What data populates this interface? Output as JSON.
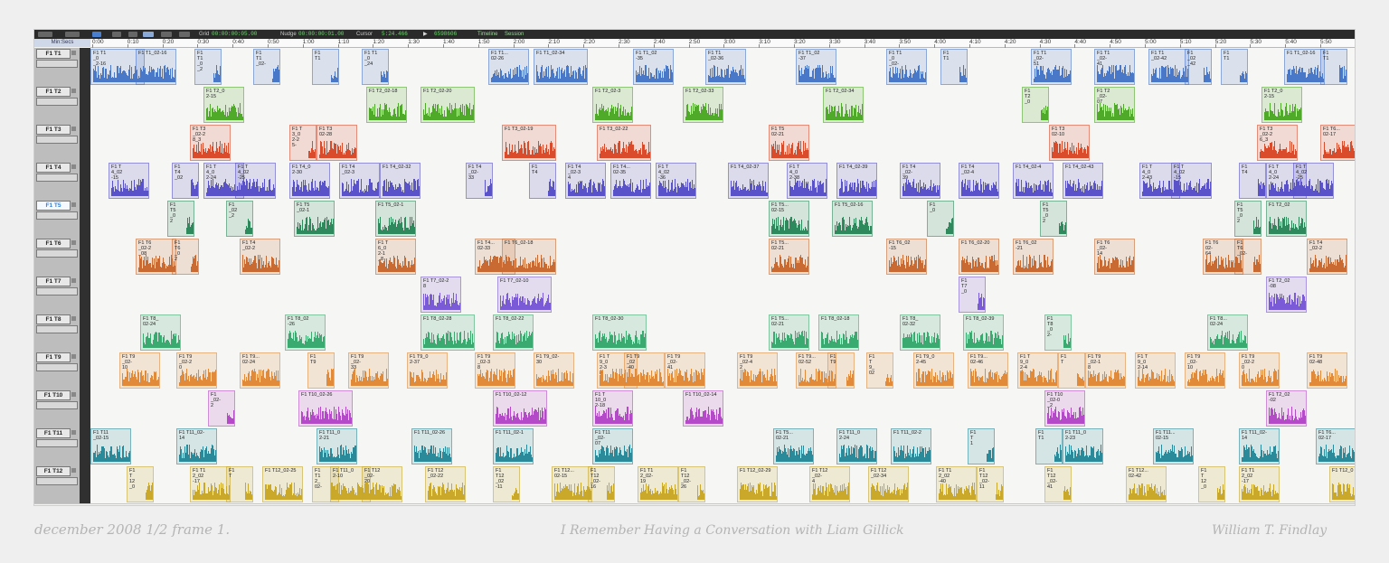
{
  "toolbar": {
    "grid_label": "Grid",
    "grid_value": "00:00:00:05.00",
    "nudge_label": "Nudge",
    "nudge_value": "00:00:00:01.00",
    "cursor_label": "Cursor",
    "cursor_value": "5:24.466",
    "samples_value": "6598606",
    "timeline_tab": "Timeline",
    "session_tab": "Session"
  },
  "ruler": {
    "label": "Min:Secs",
    "ticks": [
      "0:00",
      "0:10",
      "0:20",
      "0:30",
      "0:40",
      "0:50",
      "1:00",
      "1:10",
      "1:20",
      "1:30",
      "1:40",
      "1:50",
      "2:00",
      "2:10",
      "2:20",
      "2:30",
      "2:40",
      "2:50",
      "3:00",
      "3:10",
      "3:20",
      "3:30",
      "3:40",
      "3:50",
      "4:00",
      "4:10",
      "4:20",
      "4:30",
      "4:40",
      "4:50",
      "5:00",
      "5:10",
      "5:20",
      "5:30",
      "5:40",
      "5:50"
    ]
  },
  "tracks": [
    {
      "name": "F1 T1",
      "color": "#4a78c8",
      "clips": [
        [
          0,
          "F1 T1\n_0\n_2-16",
          0.4
        ],
        [
          50,
          "F1 T1_02-16",
          0.3
        ],
        [
          115,
          "F1\nT1\n_0\n_2",
          0.2
        ],
        [
          180,
          "F1\nT1\n_02-",
          0.2
        ],
        [
          245,
          "F1\nT1",
          0.2
        ],
        [
          300,
          "F1 T1\n_0\n_24",
          0.2
        ],
        [
          440,
          "F1 T1...\n02-26",
          0.3
        ],
        [
          490,
          "F1 T1_02-34",
          0.4
        ],
        [
          600,
          "F1 T1_02\n-35",
          0.3
        ],
        [
          680,
          "F1 T1\n_02-36",
          0.3
        ],
        [
          780,
          "F1 T1_02\n-37",
          0.3
        ],
        [
          880,
          "F1 T1\n_0\n_02-",
          0.3
        ],
        [
          940,
          "F1\nT1",
          0.2
        ],
        [
          1040,
          "F1 T1\n_02-\n51",
          0.3
        ],
        [
          1110,
          "F1 T1\n_02-\n41",
          0.3
        ],
        [
          1170,
          "F1 T1\n_02-42",
          0.3
        ],
        [
          1210,
          "F1\n_02\n_42",
          0.2
        ],
        [
          1250,
          "F1\nT1",
          0.2
        ],
        [
          1320,
          "F1 T1_02-16",
          0.3
        ],
        [
          1360,
          "F1\nT1",
          0.2
        ]
      ]
    },
    {
      "name": "F1 T2",
      "color": "#4faa2a",
      "clips": [
        [
          125,
          "F1 T2_0\n2-15",
          0.3
        ],
        [
          305,
          "F1 T2_02-18",
          0.3
        ],
        [
          365,
          "F1 T2_02-20",
          0.4
        ],
        [
          555,
          "F1 T2_02-3",
          0.3
        ],
        [
          655,
          "F1 T2_02-33",
          0.3
        ],
        [
          810,
          "F1 T2_02-34",
          0.3
        ],
        [
          1030,
          "F1\nT2\n_0",
          0.2
        ],
        [
          1110,
          "F1 T2\n_02-\n07",
          0.3
        ],
        [
          1295,
          "F1 T2_0\n2-15",
          0.3
        ]
      ]
    },
    {
      "name": "F1 T3",
      "color": "#d94b2b",
      "clips": [
        [
          110,
          "F1 T3\n_02-2\n8_3",
          0.3
        ],
        [
          220,
          "F1 T\n3_0\n2-2\n5-",
          0.2
        ],
        [
          250,
          "F1 T3\n02-28",
          0.3
        ],
        [
          455,
          "F1 T3_02-19",
          0.4
        ],
        [
          560,
          "F1 T3_02-22",
          0.4
        ],
        [
          750,
          "F1 T5\n02-21",
          0.3
        ],
        [
          1060,
          "F1 T3\n02-10",
          0.3
        ],
        [
          1290,
          "F1 T3\n_02-2\n6_3",
          0.3
        ],
        [
          1360,
          "F1 T6...\n02-17",
          0.3
        ]
      ]
    },
    {
      "name": "F1 T4",
      "color": "#5a52c8",
      "clips": [
        [
          20,
          "F1 T\n4_02\n-15",
          0.3
        ],
        [
          90,
          "F1\nT4\n_02",
          0.2
        ],
        [
          125,
          "F1 T\n4_0\n2-24",
          0.3
        ],
        [
          160,
          "F1 T\n4_02\n-25",
          0.3
        ],
        [
          220,
          "F1 T4_0\n2-30",
          0.3
        ],
        [
          275,
          "F1 T4\n_02-3",
          0.3
        ],
        [
          320,
          "F1 T4_02-32",
          0.3
        ],
        [
          415,
          "F1 T4\n_02-\n33",
          0.2
        ],
        [
          485,
          "F1\nT4",
          0.2
        ],
        [
          525,
          "F1 T4\n_02-3\n4",
          0.3
        ],
        [
          575,
          "F1 T4...\n02-35",
          0.3
        ],
        [
          625,
          "F1 T\n4_02\n-36",
          0.3
        ],
        [
          705,
          "F1 T4_02-37",
          0.3
        ],
        [
          770,
          "F1 T\n4_0\n2-38",
          0.3
        ],
        [
          825,
          "F1 T4_02-39",
          0.3
        ],
        [
          895,
          "F1 T4\n_02-\n39",
          0.3
        ],
        [
          960,
          "F1 T4\n_02-4",
          0.3
        ],
        [
          1020,
          "F1 T4_02-4",
          0.3
        ],
        [
          1075,
          "F1 T4_02-43",
          0.3
        ],
        [
          1160,
          "F1 T\n4_0\n2-43",
          0.3
        ],
        [
          1195,
          "F1 T\n4_02\n-15",
          0.3
        ],
        [
          1270,
          "F1\nT4",
          0.2
        ],
        [
          1300,
          "F1 T\n4_0\n2-24",
          0.3
        ],
        [
          1330,
          "F1 T\n4_02\n-25",
          0.3
        ]
      ]
    },
    {
      "name": "F1 T5",
      "color": "#2e8a5c",
      "selected": true,
      "clips": [
        [
          85,
          "F1\nT5\n_0\n2",
          0.2
        ],
        [
          150,
          "F1\n_02\n_2",
          0.2
        ],
        [
          225,
          "F1 T5\n_02-1",
          0.3
        ],
        [
          315,
          "F1 T5_02-1",
          0.3
        ],
        [
          750,
          "F1 T5...\n02-15",
          0.3
        ],
        [
          820,
          "F1 T5_02-16",
          0.3
        ],
        [
          925,
          "F1\n_0",
          0.2
        ],
        [
          1050,
          "F1\nT5\n_0\n2",
          0.2
        ],
        [
          1265,
          "F1\nT5\n_0\n2",
          0.2
        ],
        [
          1300,
          "F1 T2_02",
          0.3
        ]
      ]
    },
    {
      "name": "F1 T6",
      "color": "#c96a32",
      "clips": [
        [
          50,
          "F1 T6\n_02-2\n_08",
          0.3
        ],
        [
          90,
          "F1\nT6\n_0\n2",
          0.2
        ],
        [
          165,
          "F1 T4\n_02-2",
          0.3
        ],
        [
          315,
          "F1 T\n6_0\n2-1\n_8",
          0.3
        ],
        [
          425,
          "F1 T4...\n02-33",
          0.3
        ],
        [
          455,
          "F1 T6_02-18",
          0.4
        ],
        [
          750,
          "F1 T5...\n02-21",
          0.3
        ],
        [
          880,
          "F1 T6_02\n-15",
          0.3
        ],
        [
          960,
          "F1 T6_02-20",
          0.3
        ],
        [
          1020,
          "F1 T6_02\n-21",
          0.3
        ],
        [
          1110,
          "F1 T6\n_02-\n14",
          0.3
        ],
        [
          1230,
          "F1 T6\n02-\n64",
          0.3
        ],
        [
          1265,
          "F1\nT6\n_02-",
          0.2
        ],
        [
          1345,
          "F1 T4\n_02-2",
          0.3
        ]
      ]
    },
    {
      "name": "F1 T7",
      "color": "#7a5ad6",
      "clips": [
        [
          365,
          "F1 T7_02-2\n8",
          0.3
        ],
        [
          450,
          "F1 T7_02-10",
          0.4
        ],
        [
          960,
          "F1\nT7\n_0",
          0.2
        ],
        [
          1300,
          "F1 T2_02\n-08",
          0.3
        ]
      ]
    },
    {
      "name": "F1 T8",
      "color": "#3aaa70",
      "clips": [
        [
          55,
          "F1 T8_\n02-24",
          0.3
        ],
        [
          215,
          "F1 T8_02\n-26",
          0.3
        ],
        [
          365,
          "F1 T8_02-28",
          0.4
        ],
        [
          445,
          "F1 T8_02-22",
          0.3
        ],
        [
          555,
          "F1 T8_02-30",
          0.4
        ],
        [
          750,
          "F1 T5...\n02-21",
          0.3
        ],
        [
          805,
          "F1 T8_02-18",
          0.3
        ],
        [
          895,
          "F1 T8_\n02-32",
          0.3
        ],
        [
          965,
          "F1 T8_02-39",
          0.3
        ],
        [
          1055,
          "F1\nT8\n_0\n2-",
          0.2
        ],
        [
          1235,
          "F1 T8...\n02-24",
          0.3
        ]
      ]
    },
    {
      "name": "F1 T9",
      "color": "#e08a3a",
      "clips": [
        [
          32,
          "F1 T9\n_02-\n10",
          0.3
        ],
        [
          95,
          "F1 T9\n_02-2\n0",
          0.3
        ],
        [
          165,
          "F1 T9...\n02-24",
          0.3
        ],
        [
          240,
          "F1\nT9",
          0.2
        ],
        [
          285,
          "F1 T9\n_02-\n33",
          0.3
        ],
        [
          350,
          "F1 T9_0\n2-37",
          0.3
        ],
        [
          425,
          "F1 T9\n_02-3\n8",
          0.3
        ],
        [
          490,
          "F1 T9_02-\n30",
          0.3
        ],
        [
          560,
          "F1 T\n9_0\n2-3\n8",
          0.3
        ],
        [
          590,
          "F1 T9\n_02\n-40",
          0.3
        ],
        [
          635,
          "F1 T9\n_02-\n41",
          0.3
        ],
        [
          715,
          "F1 T9\n_02-4\n2",
          0.3
        ],
        [
          780,
          "F1 T9...\n02-52",
          0.3
        ],
        [
          815,
          "F1\nT9",
          0.2
        ],
        [
          858,
          "F1\nT\n9_\n02",
          0.2
        ],
        [
          910,
          "F1 T9_0\n2-45",
          0.3
        ],
        [
          970,
          "F1 T9...\n02-46",
          0.3
        ],
        [
          1025,
          "F1 T\n9_0\n2-4\n7",
          0.3
        ],
        [
          1070,
          "F1\nT",
          0.2
        ],
        [
          1100,
          "F1 T9\n_02-1\n8",
          0.3
        ],
        [
          1155,
          "F1 T\n9_0\n2-14",
          0.3
        ],
        [
          1210,
          "F1 T9\n_02-\n10",
          0.3
        ],
        [
          1270,
          "F1 T9\n_02-2\n0",
          0.3
        ],
        [
          1345,
          "F1 T9\n02-48",
          0.3
        ]
      ]
    },
    {
      "name": "F1 T10",
      "color": "#b44ac8",
      "clips": [
        [
          130,
          "F1\n_02-\n2",
          0.2
        ],
        [
          230,
          "F1 T10_02-26",
          0.4
        ],
        [
          445,
          "F1 T10_02-12",
          0.4
        ],
        [
          555,
          "F1 T\n10_0\n2-18",
          0.3
        ],
        [
          655,
          "F1 T10_02-14",
          0.3
        ],
        [
          1055,
          "F1 T10\n_02-0\n_2",
          0.3
        ],
        [
          1300,
          "F1 T2_02\n-02",
          0.3
        ]
      ]
    },
    {
      "name": "F1 T11",
      "color": "#2a8a9a",
      "clips": [
        [
          0,
          "F1 T11\n_02-15",
          0.3
        ],
        [
          95,
          "F1 T11_02-\n14",
          0.3
        ],
        [
          250,
          "F1 T11_0\n2-21",
          0.3
        ],
        [
          355,
          "F1 T11_02-26",
          0.3
        ],
        [
          445,
          "F1 T11_02-1",
          0.3
        ],
        [
          555,
          "F1 T11\n_02-\n07",
          0.3
        ],
        [
          755,
          "F1 T5...\n02-21",
          0.3
        ],
        [
          825,
          "F1 T11_0\n2-24",
          0.3
        ],
        [
          885,
          "F1 T11_02-2",
          0.3
        ],
        [
          970,
          "F1\nT\n1",
          0.2
        ],
        [
          1045,
          "F1\nT1",
          0.2
        ],
        [
          1075,
          "F1 T11_0\n2-23",
          0.3
        ],
        [
          1175,
          "F1 T11...\n02-15",
          0.3
        ],
        [
          1270,
          "F1 T11_02-\n14",
          0.3
        ],
        [
          1355,
          "F1 T6...\n02-17",
          0.3
        ]
      ]
    },
    {
      "name": "F1 T12",
      "color": "#c9a82a",
      "clips": [
        [
          40,
          "F1\nT\n12\n_0",
          0.2
        ],
        [
          110,
          "F1 T1\n2_02\n-17",
          0.3
        ],
        [
          150,
          "F1\nT",
          0.2
        ],
        [
          190,
          "F1 T12_02-25",
          0.3
        ],
        [
          245,
          "F1\nT1\n2_\n02-",
          0.2
        ],
        [
          265,
          "F1 T11_0\n2-10",
          0.3
        ],
        [
          300,
          "F1 T12\n_02-\n20",
          0.3
        ],
        [
          370,
          "F1 T12\n_02-22",
          0.3
        ],
        [
          445,
          "F1\nT12\n_02\n-11",
          0.2
        ],
        [
          510,
          "F1 T12...\n02-15",
          0.3
        ],
        [
          550,
          "F1\nT12\n_02-\n16",
          0.2
        ],
        [
          605,
          "F1 T1\n2_02-\n19",
          0.3
        ],
        [
          650,
          "F1\nT12\n_02-\n26",
          0.2
        ],
        [
          715,
          "F1 T12_02-29",
          0.3
        ],
        [
          795,
          "F1 T12\n_02-\n4",
          0.3
        ],
        [
          860,
          "F1 T12\n_02-34",
          0.3
        ],
        [
          935,
          "F1 T1\n2_02\n-40",
          0.3
        ],
        [
          980,
          "F1\nT12\n_02-\n11",
          0.2
        ],
        [
          1055,
          "F1\nT12\n_02-\n41",
          0.2
        ],
        [
          1145,
          "F1 T12...\n02-42",
          0.3
        ],
        [
          1225,
          "F1\nT\n12\n_0",
          0.2
        ],
        [
          1270,
          "F1 T1\n2_02\n-17",
          0.3
        ],
        [
          1370,
          "F1 T12_0",
          0.3
        ]
      ]
    }
  ],
  "signature": {
    "date": "december 2008  1/2   frame 1.",
    "title": "I Remember Having a Conversation with Liam Gillick",
    "artist": "William T. Findlay"
  }
}
